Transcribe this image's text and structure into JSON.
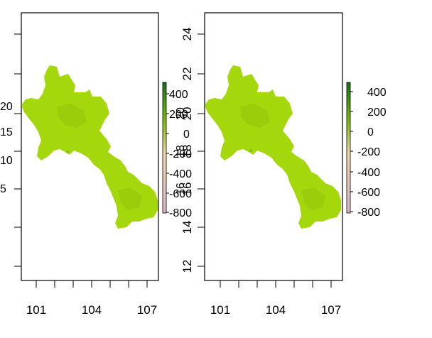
{
  "panels": [
    {
      "id": "left",
      "x_ticks": [
        "101",
        "104",
        "107"
      ],
      "y_ticks": [
        "5",
        "10",
        "15",
        "20"
      ],
      "legend_ticks": [
        "400",
        "200",
        "0",
        "-200",
        "-400",
        "-600",
        "-800"
      ],
      "legend_ticks_overlap": [
        "20",
        "18",
        "16"
      ]
    },
    {
      "id": "right",
      "x_ticks": [
        "101",
        "104",
        "107"
      ],
      "y_ticks": [
        "12",
        "14",
        "16",
        "18",
        "20",
        "22",
        "24"
      ],
      "legend_ticks": [
        "400",
        "200",
        "0",
        "-200",
        "-400",
        "-600",
        "-800"
      ]
    }
  ],
  "colors": {
    "land": "#a5d80c",
    "land_shade": "#9ccd0a",
    "land_dark": "#7fbf10",
    "legend_top": "#1a6e1a",
    "legend_mid": "#f4d7b0",
    "legend_low": "#d9b7c9",
    "frame": "#000000"
  }
}
